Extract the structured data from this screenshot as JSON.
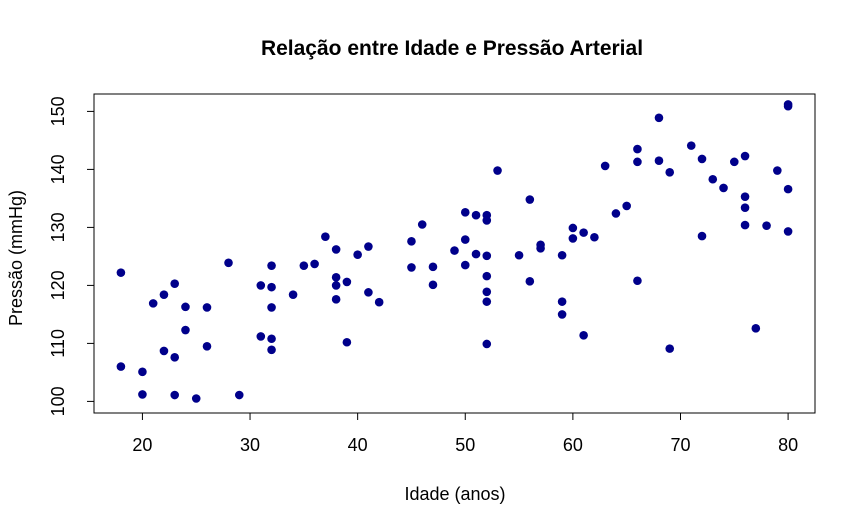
{
  "chart_data": {
    "type": "scatter",
    "title": "Relação entre Idade e Pressão Arterial",
    "xlabel": "Idade (anos)",
    "ylabel": "Pressão (mmHg)",
    "xlim": [
      15.5,
      82.5
    ],
    "ylim": [
      98,
      153
    ],
    "x_ticks": [
      "20",
      "30",
      "40",
      "50",
      "60",
      "70",
      "80"
    ],
    "y_ticks": [
      "100",
      "110",
      "120",
      "130",
      "140",
      "150"
    ],
    "grid": false,
    "point_color": "#00008B",
    "points": [
      [
        18,
        122.2
      ],
      [
        18,
        106
      ],
      [
        20,
        105.1
      ],
      [
        20,
        101.2
      ],
      [
        21,
        116.9
      ],
      [
        22,
        118.4
      ],
      [
        22,
        108.7
      ],
      [
        23,
        120.3
      ],
      [
        23,
        107.6
      ],
      [
        23,
        101.1
      ],
      [
        24,
        116.3
      ],
      [
        24,
        112.3
      ],
      [
        25,
        100.5
      ],
      [
        26,
        116.2
      ],
      [
        26,
        109.5
      ],
      [
        28,
        123.9
      ],
      [
        29,
        101.1
      ],
      [
        31,
        120
      ],
      [
        31,
        111.2
      ],
      [
        32,
        123.4
      ],
      [
        32,
        119.7
      ],
      [
        32,
        116.2
      ],
      [
        32,
        110.8
      ],
      [
        32,
        108.9
      ],
      [
        34,
        118.4
      ],
      [
        35,
        123.4
      ],
      [
        36,
        123.7
      ],
      [
        37,
        128.4
      ],
      [
        38,
        126.2
      ],
      [
        38,
        121.4
      ],
      [
        38,
        120
      ],
      [
        38,
        117.6
      ],
      [
        39,
        120.6
      ],
      [
        39,
        110.2
      ],
      [
        40,
        125.3
      ],
      [
        41,
        126.7
      ],
      [
        41,
        118.8
      ],
      [
        42,
        117.1
      ],
      [
        45,
        127.6
      ],
      [
        45,
        123.1
      ],
      [
        46,
        130.5
      ],
      [
        47,
        123.2
      ],
      [
        47,
        120.1
      ],
      [
        49,
        126
      ],
      [
        50,
        132.6
      ],
      [
        50,
        127.9
      ],
      [
        50,
        123.5
      ],
      [
        51,
        132.1
      ],
      [
        51,
        125.4
      ],
      [
        52,
        132.1
      ],
      [
        52,
        131.2
      ],
      [
        52,
        125.1
      ],
      [
        52,
        121.6
      ],
      [
        52,
        118.9
      ],
      [
        52,
        117.2
      ],
      [
        52,
        109.9
      ],
      [
        53,
        139.8
      ],
      [
        55,
        125.2
      ],
      [
        56,
        134.8
      ],
      [
        56,
        120.7
      ],
      [
        57,
        127
      ],
      [
        57,
        126.4
      ],
      [
        59,
        125.2
      ],
      [
        59,
        117.2
      ],
      [
        59,
        115
      ],
      [
        60,
        129.9
      ],
      [
        60,
        128.1
      ],
      [
        61,
        129.1
      ],
      [
        61,
        111.4
      ],
      [
        62,
        128.3
      ],
      [
        63,
        140.6
      ],
      [
        64,
        132.4
      ],
      [
        65,
        133.7
      ],
      [
        66,
        143.5
      ],
      [
        66,
        141.3
      ],
      [
        66,
        120.8
      ],
      [
        68,
        148.9
      ],
      [
        68,
        141.5
      ],
      [
        69,
        139.5
      ],
      [
        69,
        109.1
      ],
      [
        71,
        144.1
      ],
      [
        72,
        141.8
      ],
      [
        72,
        128.5
      ],
      [
        73,
        138.3
      ],
      [
        74,
        136.8
      ],
      [
        75,
        141.3
      ],
      [
        76,
        142.3
      ],
      [
        76,
        135.3
      ],
      [
        76,
        133.4
      ],
      [
        76,
        130.4
      ],
      [
        77,
        112.6
      ],
      [
        78,
        130.3
      ],
      [
        79,
        139.8
      ],
      [
        80,
        151.2
      ],
      [
        80,
        150.9
      ],
      [
        80,
        136.6
      ],
      [
        80,
        129.3
      ]
    ]
  }
}
